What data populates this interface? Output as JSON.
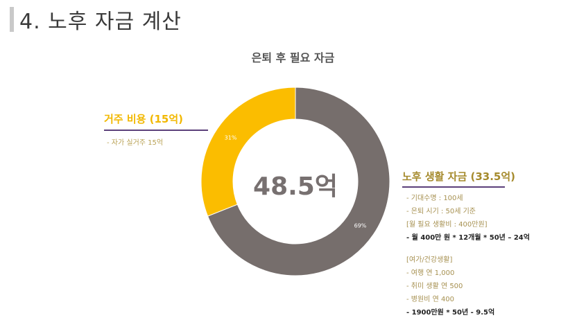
{
  "page": {
    "title": "4. 노후 자금 계산"
  },
  "chart_data": {
    "type": "pie",
    "title": "은퇴 후 필요 자금",
    "center_label": "48.5억",
    "slices": [
      {
        "label": "노후 생활 자금 (33.5억)",
        "value": 69,
        "value_label": "69%",
        "color": "#766e6c"
      },
      {
        "label": "거주 비용 (15억)",
        "value": 31,
        "value_label": "31%",
        "color": "#fbbd00"
      }
    ]
  },
  "left_annotation": {
    "heading": "거주 비용 (15억)",
    "note": "-  자가 실거주 15억"
  },
  "right_annotation": {
    "heading": "노후 생활 자금 (33.5억)",
    "lines": [
      {
        "text": "-  기대수명 : 100세",
        "style": ""
      },
      {
        "text": "-  은퇴 시기 : 50세 기준",
        "style": ""
      },
      {
        "text": "[월 필요 생활비 :  400만원]",
        "style": ""
      },
      {
        "text": "-  월 400만 원 * 12개월 * 50년 – 24억",
        "style": "strong"
      },
      {
        "text": "[여가/건강생활]",
        "style": "gap"
      },
      {
        "text": "-  여행 연 1,000",
        "style": ""
      },
      {
        "text": "-  취미 생활 연 500",
        "style": ""
      },
      {
        "text": "-  병원비 연 400",
        "style": ""
      },
      {
        "text": "-  1900만원 * 50년 - 9.5억",
        "style": "strong"
      }
    ]
  }
}
